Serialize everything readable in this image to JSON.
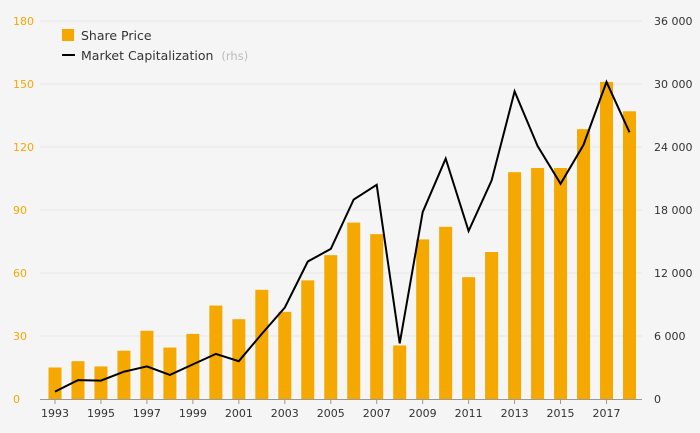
{
  "chart_data": {
    "type": "bar",
    "x_tick_labels": [
      "1993",
      "1995",
      "1997",
      "1999",
      "2001",
      "2003",
      "2005",
      "2007",
      "2009",
      "2011",
      "2013",
      "2015",
      "2017"
    ],
    "y_left_ticks": [
      "0",
      "30",
      "60",
      "90",
      "120",
      "150",
      "180"
    ],
    "y_right_ticks": [
      "0",
      "6 000",
      "12 000",
      "18 000",
      "24 000",
      "30 000",
      "36 000"
    ],
    "ylim_left": [
      0,
      180
    ],
    "ylim_right": [
      0,
      36000
    ],
    "categories": [
      1993,
      1994,
      1995,
      1996,
      1997,
      1998,
      1999,
      2000,
      2001,
      2002,
      2003,
      2004,
      2005,
      2006,
      2007,
      2008,
      2009,
      2010,
      2011,
      2012,
      2013,
      2014,
      2015,
      2016,
      2017,
      2018
    ],
    "series": [
      {
        "name": "Share Price",
        "type": "bar",
        "axis": "left",
        "color": "#f5a800",
        "values": [
          15,
          18,
          15.5,
          23,
          32.5,
          24.5,
          31,
          44.5,
          38,
          52,
          41.5,
          56.5,
          68.5,
          84,
          78.5,
          25.5,
          76,
          82,
          58,
          70,
          108,
          110,
          110,
          128.5,
          151,
          137
        ]
      },
      {
        "name": "Market Capitalization",
        "type": "line",
        "axis": "right",
        "color": "#000000",
        "values": [
          700,
          1800,
          1750,
          2600,
          3100,
          2300,
          3300,
          4300,
          3600,
          6200,
          8700,
          13100,
          14300,
          19000,
          20400,
          5300,
          17800,
          22900,
          16000,
          20800,
          29300,
          24100,
          20500,
          24200,
          30200,
          25400
        ]
      }
    ],
    "legend": {
      "items": [
        {
          "label": "Share Price",
          "suffix": ""
        },
        {
          "label": "Market Capitalization",
          "suffix": "(rhs)"
        }
      ],
      "placement": "top-left"
    },
    "left_axis_color": "#f5a800",
    "grid": true,
    "grid_color": "#e6e6e6"
  }
}
